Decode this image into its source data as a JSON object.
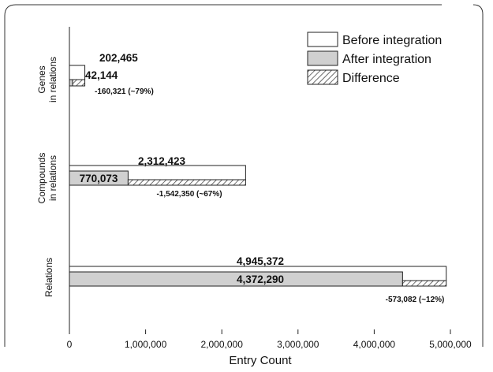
{
  "chart_data": {
    "type": "bar",
    "orientation": "horizontal",
    "categories": [
      [
        "Genes",
        "in relations"
      ],
      [
        "Compounds",
        "in relations"
      ],
      [
        "Relations"
      ]
    ],
    "series": [
      {
        "name": "Before integration",
        "values": [
          202465,
          2312423,
          4945372
        ],
        "labels": [
          "202,465",
          "2,312,423",
          "4,945,372"
        ]
      },
      {
        "name": "After integration",
        "values": [
          42144,
          770073,
          4372290
        ],
        "labels": [
          "42,144",
          "770,073",
          "4,372,290"
        ]
      },
      {
        "name": "Difference",
        "values": [
          160321,
          1542350,
          573082
        ],
        "labels": [
          "-160,321 (~79%)",
          "-1,542,350 (~67%)",
          "-573,082 (~12%)"
        ],
        "stacked_after": "After integration"
      }
    ],
    "xlabel": "Entry Count",
    "xlim": [
      0,
      5000000
    ],
    "xticks": [
      0,
      1000000,
      2000000,
      3000000,
      4000000,
      5000000
    ],
    "xtick_labels": [
      "0",
      "1,000,000",
      "2,000,000",
      "3,000,000",
      "4,000,000",
      "5,000,000"
    ],
    "grid": false,
    "legend_position": "top-right",
    "colors": {
      "before": "#ffffff",
      "after": "#d0d0d0",
      "difference": "hatched",
      "stroke": "#222222"
    }
  }
}
